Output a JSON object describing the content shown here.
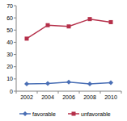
{
  "chart_data": {
    "type": "line",
    "categories": [
      "2002",
      "2004",
      "2006",
      "2008",
      "2010"
    ],
    "series": [
      {
        "name": "favorable",
        "color": "#4a6fb5",
        "marker": "diamond",
        "values": [
          6,
          6.3,
          7.5,
          6,
          7
        ]
      },
      {
        "name": "unfavorable",
        "color": "#b5304a",
        "marker": "square",
        "values": [
          43,
          54,
          53,
          59,
          56.5
        ]
      }
    ],
    "ylim": [
      0,
      70
    ],
    "yticks": [
      0,
      10,
      20,
      30,
      40,
      50,
      60,
      70
    ],
    "grid": false,
    "legend": "bottom"
  }
}
